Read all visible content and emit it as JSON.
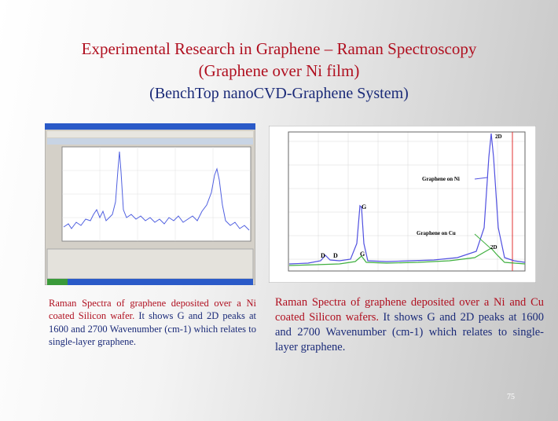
{
  "title": {
    "line1": "Experimental Research in Graphene – Raman Spectroscopy",
    "line2": "(Graphene over Ni film)",
    "line3": "(BenchTop nanoCVD-Graphene System)"
  },
  "left_figure": {
    "caption_red": "Raman Spectra of graphene deposited over a Ni coated Silicon wafer.",
    "caption_blue": "It shows G and 2D peaks at 1600 and 2700 Wavenumber (cm-1) which relates to single-layer graphene."
  },
  "right_figure": {
    "labels": [
      "2D",
      "Graphene on Ni",
      "G",
      "Graphene on Cu",
      "2D",
      "D",
      "D",
      "G"
    ],
    "caption_red": "Raman Spectra of graphene deposited over a Ni and Cu coated Silicon wafers.",
    "caption_blue": "It shows G and 2D peaks at 1600 and 2700 Wavenumber (cm-1) which relates to single-layer graphene."
  },
  "slide_number": "75"
}
